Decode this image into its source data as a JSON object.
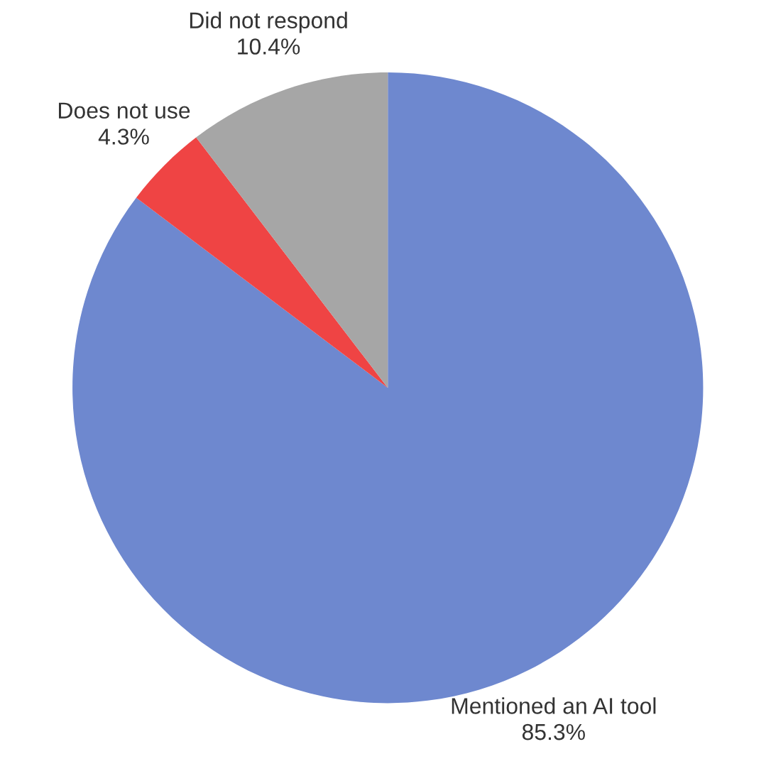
{
  "chart_data": {
    "type": "pie",
    "categories": [
      "Mentioned an AI tool",
      "Does not use",
      "Did not respond"
    ],
    "values": [
      85.3,
      4.3,
      10.4
    ],
    "value_labels": [
      "85.3%",
      "4.3%",
      "10.4%"
    ],
    "colors": [
      "#6e88cf",
      "#ef4444",
      "#a6a6a6"
    ],
    "legend": false
  }
}
